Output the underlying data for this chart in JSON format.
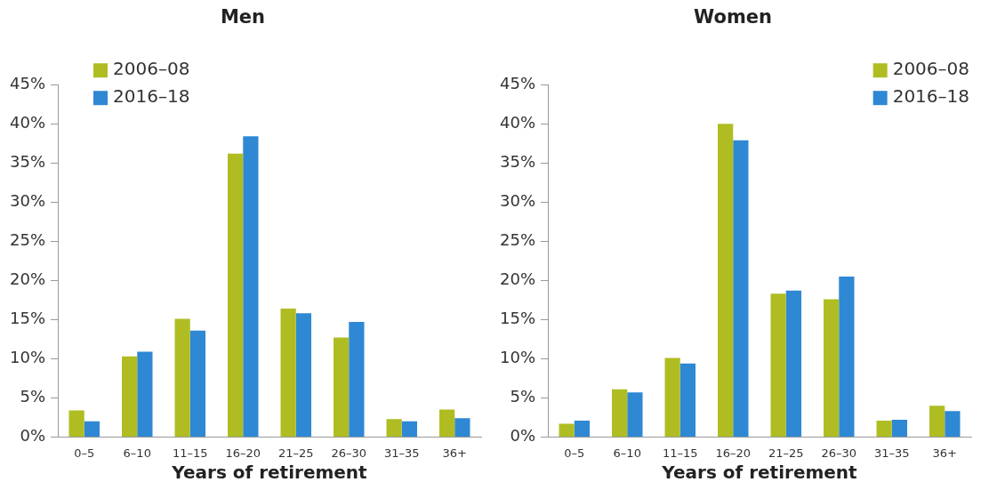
{
  "chart_data": [
    {
      "type": "bar",
      "title": "Men",
      "xlabel": "Years of retirement",
      "categories": [
        "0–5",
        "6–10",
        "11–15",
        "16–20",
        "21–25",
        "26–30",
        "31–35",
        "36+"
      ],
      "series": [
        {
          "name": "2006–08",
          "color": "#afbd22",
          "values": [
            3.4,
            10.3,
            15.1,
            36.2,
            16.4,
            12.7,
            2.3,
            3.5
          ]
        },
        {
          "name": "2016–18",
          "color": "#2e88d4",
          "values": [
            2.0,
            10.9,
            13.6,
            38.4,
            15.8,
            14.7,
            2.0,
            2.4
          ]
        }
      ],
      "ylim": [
        0,
        45
      ],
      "yticks": [
        {
          "value": 0,
          "label": "0%"
        },
        {
          "value": 5,
          "label": "5%"
        },
        {
          "value": 10,
          "label": "10%"
        },
        {
          "value": 15,
          "label": "15%"
        },
        {
          "value": 20,
          "label": "20%"
        },
        {
          "value": 25,
          "label": "25%"
        },
        {
          "value": 30,
          "label": "30%"
        },
        {
          "value": 35,
          "label": "35%"
        },
        {
          "value": 40,
          "label": "40%"
        },
        {
          "value": 45,
          "label": "45%"
        }
      ],
      "grid": false,
      "legend": "top left"
    },
    {
      "type": "bar",
      "title": "Women",
      "xlabel": "Years of retirement",
      "categories": [
        "0–5",
        "6–10",
        "11–15",
        "16–20",
        "21–25",
        "26–30",
        "31–35",
        "36+"
      ],
      "series": [
        {
          "name": "2006–08",
          "color": "#afbd22",
          "values": [
            1.7,
            6.1,
            10.1,
            40.0,
            18.3,
            17.6,
            2.1,
            4.0
          ]
        },
        {
          "name": "2016–18",
          "color": "#2e88d4",
          "values": [
            2.1,
            5.7,
            9.4,
            37.9,
            18.7,
            20.5,
            2.2,
            3.3
          ]
        }
      ],
      "ylim": [
        0,
        45
      ],
      "yticks": [
        {
          "value": 0,
          "label": "0%"
        },
        {
          "value": 5,
          "label": "5%"
        },
        {
          "value": 10,
          "label": "10%"
        },
        {
          "value": 15,
          "label": "15%"
        },
        {
          "value": 20,
          "label": "20%"
        },
        {
          "value": 25,
          "label": "25%"
        },
        {
          "value": 30,
          "label": "30%"
        },
        {
          "value": 35,
          "label": "35%"
        },
        {
          "value": 40,
          "label": "40%"
        },
        {
          "value": 45,
          "label": "45%"
        }
      ],
      "grid": false,
      "legend": "top right"
    }
  ]
}
